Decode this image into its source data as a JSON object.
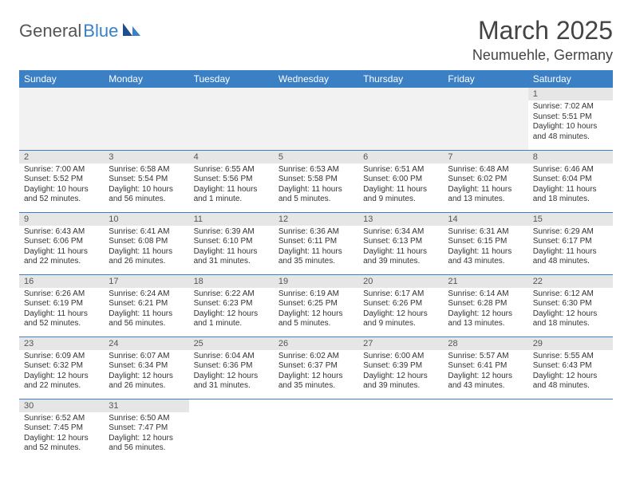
{
  "logo": {
    "text1": "General",
    "text2": "Blue"
  },
  "title": "March 2025",
  "location": "Neumuehle, Germany",
  "colors": {
    "header_bg": "#3b7fc4",
    "header_fg": "#ffffff",
    "daynum_bg": "#e6e6e6",
    "border": "#3b7fc4",
    "empty_bg": "#f2f2f2"
  },
  "weekdays": [
    "Sunday",
    "Monday",
    "Tuesday",
    "Wednesday",
    "Thursday",
    "Friday",
    "Saturday"
  ],
  "weeks": [
    [
      {
        "blank": true
      },
      {
        "blank": true
      },
      {
        "blank": true
      },
      {
        "blank": true
      },
      {
        "blank": true
      },
      {
        "blank": true
      },
      {
        "n": "1",
        "sunrise": "Sunrise: 7:02 AM",
        "sunset": "Sunset: 5:51 PM",
        "day1": "Daylight: 10 hours",
        "day2": "and 48 minutes."
      }
    ],
    [
      {
        "n": "2",
        "sunrise": "Sunrise: 7:00 AM",
        "sunset": "Sunset: 5:52 PM",
        "day1": "Daylight: 10 hours",
        "day2": "and 52 minutes."
      },
      {
        "n": "3",
        "sunrise": "Sunrise: 6:58 AM",
        "sunset": "Sunset: 5:54 PM",
        "day1": "Daylight: 10 hours",
        "day2": "and 56 minutes."
      },
      {
        "n": "4",
        "sunrise": "Sunrise: 6:55 AM",
        "sunset": "Sunset: 5:56 PM",
        "day1": "Daylight: 11 hours",
        "day2": "and 1 minute."
      },
      {
        "n": "5",
        "sunrise": "Sunrise: 6:53 AM",
        "sunset": "Sunset: 5:58 PM",
        "day1": "Daylight: 11 hours",
        "day2": "and 5 minutes."
      },
      {
        "n": "6",
        "sunrise": "Sunrise: 6:51 AM",
        "sunset": "Sunset: 6:00 PM",
        "day1": "Daylight: 11 hours",
        "day2": "and 9 minutes."
      },
      {
        "n": "7",
        "sunrise": "Sunrise: 6:48 AM",
        "sunset": "Sunset: 6:02 PM",
        "day1": "Daylight: 11 hours",
        "day2": "and 13 minutes."
      },
      {
        "n": "8",
        "sunrise": "Sunrise: 6:46 AM",
        "sunset": "Sunset: 6:04 PM",
        "day1": "Daylight: 11 hours",
        "day2": "and 18 minutes."
      }
    ],
    [
      {
        "n": "9",
        "sunrise": "Sunrise: 6:43 AM",
        "sunset": "Sunset: 6:06 PM",
        "day1": "Daylight: 11 hours",
        "day2": "and 22 minutes."
      },
      {
        "n": "10",
        "sunrise": "Sunrise: 6:41 AM",
        "sunset": "Sunset: 6:08 PM",
        "day1": "Daylight: 11 hours",
        "day2": "and 26 minutes."
      },
      {
        "n": "11",
        "sunrise": "Sunrise: 6:39 AM",
        "sunset": "Sunset: 6:10 PM",
        "day1": "Daylight: 11 hours",
        "day2": "and 31 minutes."
      },
      {
        "n": "12",
        "sunrise": "Sunrise: 6:36 AM",
        "sunset": "Sunset: 6:11 PM",
        "day1": "Daylight: 11 hours",
        "day2": "and 35 minutes."
      },
      {
        "n": "13",
        "sunrise": "Sunrise: 6:34 AM",
        "sunset": "Sunset: 6:13 PM",
        "day1": "Daylight: 11 hours",
        "day2": "and 39 minutes."
      },
      {
        "n": "14",
        "sunrise": "Sunrise: 6:31 AM",
        "sunset": "Sunset: 6:15 PM",
        "day1": "Daylight: 11 hours",
        "day2": "and 43 minutes."
      },
      {
        "n": "15",
        "sunrise": "Sunrise: 6:29 AM",
        "sunset": "Sunset: 6:17 PM",
        "day1": "Daylight: 11 hours",
        "day2": "and 48 minutes."
      }
    ],
    [
      {
        "n": "16",
        "sunrise": "Sunrise: 6:26 AM",
        "sunset": "Sunset: 6:19 PM",
        "day1": "Daylight: 11 hours",
        "day2": "and 52 minutes."
      },
      {
        "n": "17",
        "sunrise": "Sunrise: 6:24 AM",
        "sunset": "Sunset: 6:21 PM",
        "day1": "Daylight: 11 hours",
        "day2": "and 56 minutes."
      },
      {
        "n": "18",
        "sunrise": "Sunrise: 6:22 AM",
        "sunset": "Sunset: 6:23 PM",
        "day1": "Daylight: 12 hours",
        "day2": "and 1 minute."
      },
      {
        "n": "19",
        "sunrise": "Sunrise: 6:19 AM",
        "sunset": "Sunset: 6:25 PM",
        "day1": "Daylight: 12 hours",
        "day2": "and 5 minutes."
      },
      {
        "n": "20",
        "sunrise": "Sunrise: 6:17 AM",
        "sunset": "Sunset: 6:26 PM",
        "day1": "Daylight: 12 hours",
        "day2": "and 9 minutes."
      },
      {
        "n": "21",
        "sunrise": "Sunrise: 6:14 AM",
        "sunset": "Sunset: 6:28 PM",
        "day1": "Daylight: 12 hours",
        "day2": "and 13 minutes."
      },
      {
        "n": "22",
        "sunrise": "Sunrise: 6:12 AM",
        "sunset": "Sunset: 6:30 PM",
        "day1": "Daylight: 12 hours",
        "day2": "and 18 minutes."
      }
    ],
    [
      {
        "n": "23",
        "sunrise": "Sunrise: 6:09 AM",
        "sunset": "Sunset: 6:32 PM",
        "day1": "Daylight: 12 hours",
        "day2": "and 22 minutes."
      },
      {
        "n": "24",
        "sunrise": "Sunrise: 6:07 AM",
        "sunset": "Sunset: 6:34 PM",
        "day1": "Daylight: 12 hours",
        "day2": "and 26 minutes."
      },
      {
        "n": "25",
        "sunrise": "Sunrise: 6:04 AM",
        "sunset": "Sunset: 6:36 PM",
        "day1": "Daylight: 12 hours",
        "day2": "and 31 minutes."
      },
      {
        "n": "26",
        "sunrise": "Sunrise: 6:02 AM",
        "sunset": "Sunset: 6:37 PM",
        "day1": "Daylight: 12 hours",
        "day2": "and 35 minutes."
      },
      {
        "n": "27",
        "sunrise": "Sunrise: 6:00 AM",
        "sunset": "Sunset: 6:39 PM",
        "day1": "Daylight: 12 hours",
        "day2": "and 39 minutes."
      },
      {
        "n": "28",
        "sunrise": "Sunrise: 5:57 AM",
        "sunset": "Sunset: 6:41 PM",
        "day1": "Daylight: 12 hours",
        "day2": "and 43 minutes."
      },
      {
        "n": "29",
        "sunrise": "Sunrise: 5:55 AM",
        "sunset": "Sunset: 6:43 PM",
        "day1": "Daylight: 12 hours",
        "day2": "and 48 minutes."
      }
    ],
    [
      {
        "n": "30",
        "sunrise": "Sunrise: 6:52 AM",
        "sunset": "Sunset: 7:45 PM",
        "day1": "Daylight: 12 hours",
        "day2": "and 52 minutes."
      },
      {
        "n": "31",
        "sunrise": "Sunrise: 6:50 AM",
        "sunset": "Sunset: 7:47 PM",
        "day1": "Daylight: 12 hours",
        "day2": "and 56 minutes."
      },
      {
        "blank": true
      },
      {
        "blank": true
      },
      {
        "blank": true
      },
      {
        "blank": true
      },
      {
        "blank": true
      }
    ]
  ]
}
